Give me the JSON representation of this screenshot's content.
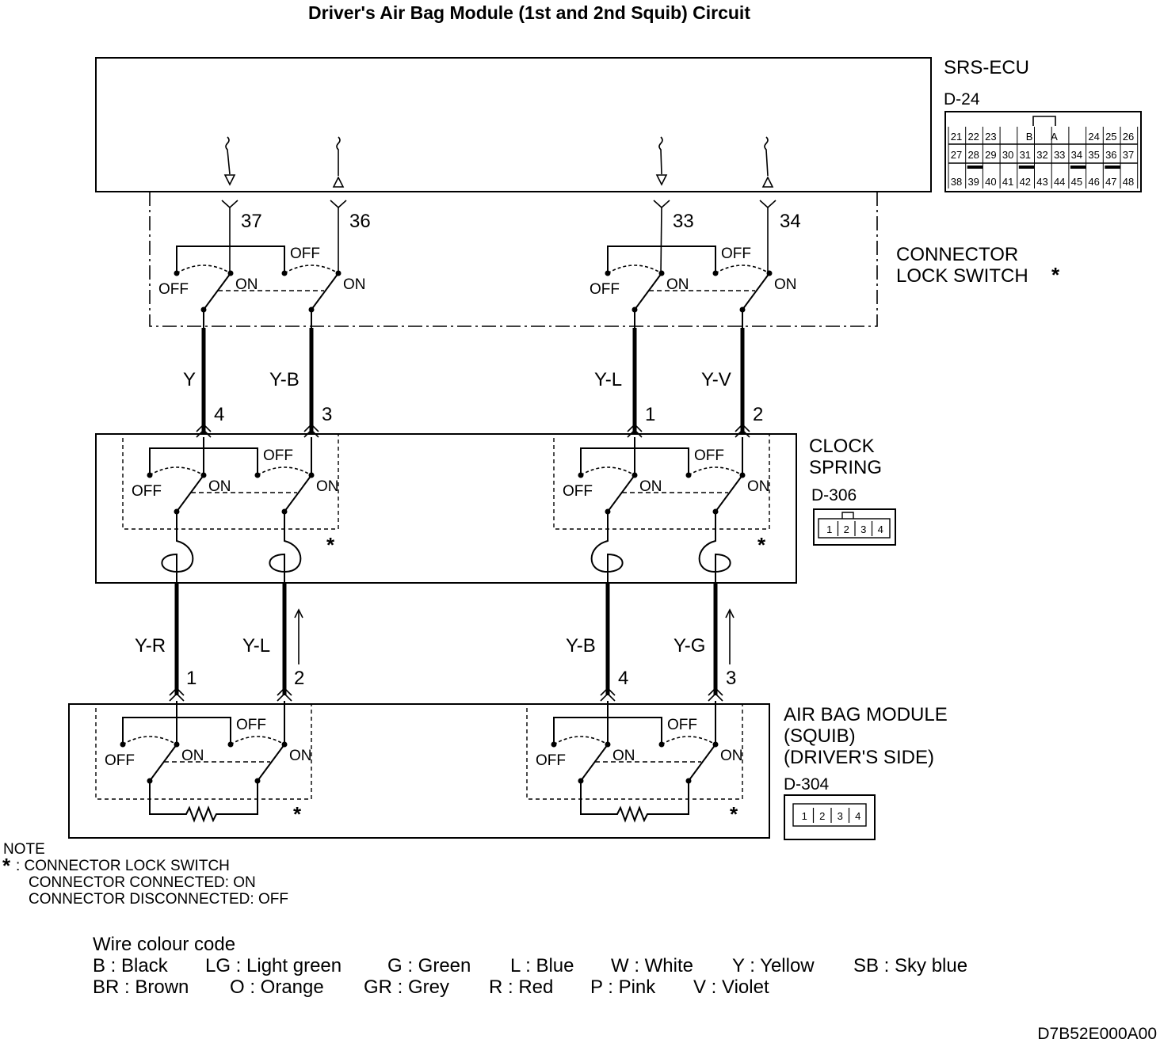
{
  "title": "Driver's Air Bag Module (1st and 2nd Squib) Circuit",
  "srs_ecu": {
    "name": "SRS-ECU",
    "connector": "D-24",
    "terminals": [
      "37",
      "36",
      "33",
      "34"
    ],
    "connector_face": {
      "row1": [
        "21",
        "22",
        "23",
        "B",
        "A",
        "24",
        "25",
        "26"
      ],
      "row2": [
        "27",
        "28",
        "29",
        "30",
        "31",
        "32",
        "33",
        "34",
        "35",
        "36",
        "37"
      ],
      "row3": [
        "38",
        "39",
        "40",
        "41",
        "42",
        "43",
        "44",
        "45",
        "46",
        "47",
        "48"
      ]
    }
  },
  "connector_lock_switch": {
    "label_line1": "CONNECTOR",
    "label_line2": "LOCK SWITCH",
    "star": "*"
  },
  "switch_text": {
    "off": "OFF",
    "on": "ON",
    "star": "*"
  },
  "wires_upper": [
    "Y",
    "Y-B",
    "Y-L",
    "Y-V"
  ],
  "clock_spring": {
    "label_line1": "CLOCK",
    "label_line2": "SPRING",
    "connector": "D-306",
    "terminals": [
      "4",
      "3",
      "1",
      "2"
    ],
    "face": [
      "1",
      "2",
      "3",
      "4"
    ]
  },
  "wires_lower": [
    "Y-R",
    "Y-L",
    "Y-B",
    "Y-G"
  ],
  "air_bag_module": {
    "label_line1": "AIR BAG MODULE",
    "label_line2": "(SQUIB)",
    "label_line3": "(DRIVER'S SIDE)",
    "connector": "D-304",
    "terminals": [
      "1",
      "2",
      "4",
      "3"
    ],
    "face": [
      "1",
      "2",
      "3",
      "4"
    ]
  },
  "note": {
    "heading": "NOTE",
    "star": "*",
    "line1": ": CONNECTOR LOCK SWITCH",
    "line2": "CONNECTOR CONNECTED: ON",
    "line3": "CONNECTOR DISCONNECTED: OFF"
  },
  "legend": {
    "heading": "Wire colour code",
    "row1": [
      "B : Black",
      "LG : Light green",
      "G : Green",
      "L : Blue",
      "W : White",
      "Y : Yellow",
      "SB : Sky blue"
    ],
    "row2": [
      "BR : Brown",
      "O : Orange",
      "GR : Grey",
      "R : Red",
      "P : Pink",
      "V : Violet"
    ]
  },
  "figure_code": "D7B52E000A00"
}
